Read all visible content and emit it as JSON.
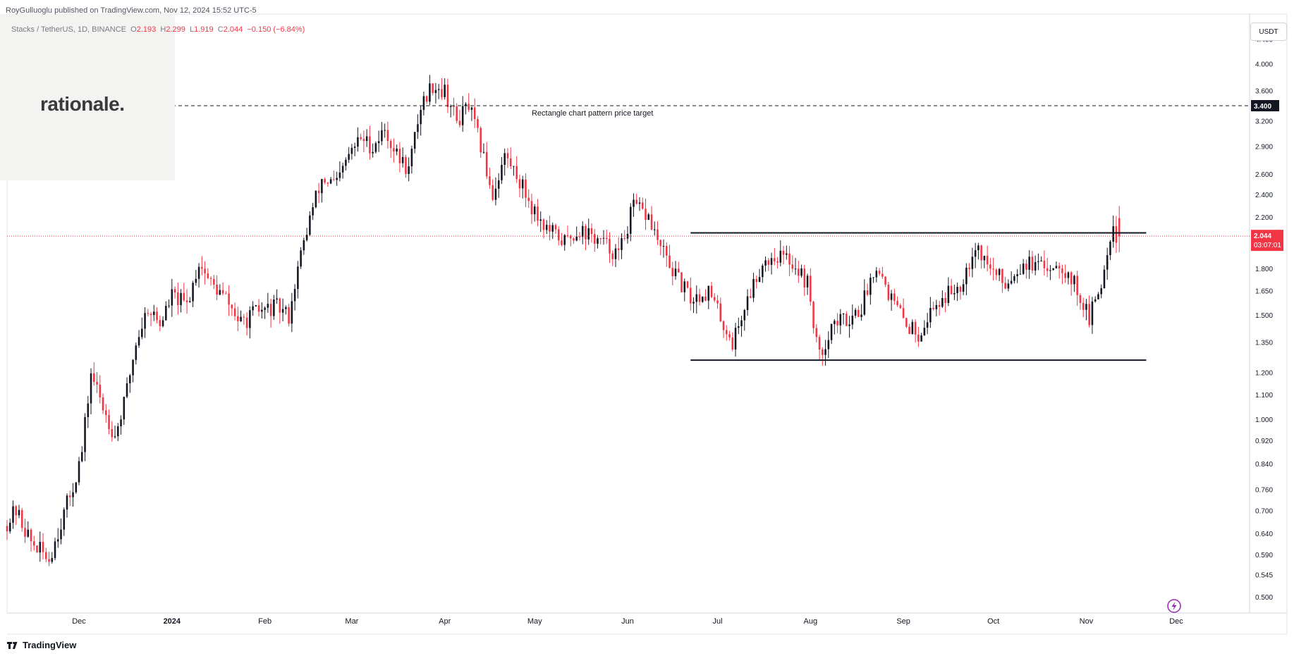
{
  "header": {
    "publisher_line": "RoyGulluoglu published on TradingView.com, Nov 12, 2024 15:52 UTC-5"
  },
  "legend": {
    "symbol": "Stacks / TetherUS, 1D, BINANCE",
    "open_label": "O",
    "open": "2.193",
    "high_label": "H",
    "high": "2.299",
    "low_label": "L",
    "low": "1.919",
    "close_label": "C",
    "close": "2.044",
    "change": "−0.150 (−6.84%)"
  },
  "watermark": {
    "text": "rationale."
  },
  "price_scale": {
    "currency_button": "USDT",
    "current_price_tag": "2.044",
    "countdown_tag": "03:07:01",
    "target_tag": "3.400"
  },
  "footer": {
    "brand": "TradingView"
  },
  "colors": {
    "up": "#131722",
    "down": "#f23645",
    "price_line": "#f23645",
    "annotation": "#131722"
  },
  "icons": {
    "footer_logo": "tradingview-logo-icon",
    "flash": "lightning-icon"
  },
  "chart_data": {
    "type": "candlestick",
    "title": "Stacks / TetherUS, 1D, BINANCE",
    "y_scale": "log",
    "ylim": [
      0.47,
      4.6
    ],
    "y_ticks": [
      "4.400",
      "4.000",
      "3.600",
      "3.200",
      "2.900",
      "2.600",
      "2.400",
      "2.200",
      "2.044",
      "1.800",
      "1.650",
      "1.500",
      "1.350",
      "1.200",
      "1.100",
      "1.000",
      "0.920",
      "0.840",
      "0.760",
      "0.700",
      "0.640",
      "0.590",
      "0.545",
      "0.500"
    ],
    "x_range": [
      "2023-11-07",
      "2024-12-25"
    ],
    "x_ticks": [
      {
        "label": "Dec",
        "date": "2023-12-01"
      },
      {
        "label": "2024",
        "date": "2024-01-01"
      },
      {
        "label": "Feb",
        "date": "2024-02-01"
      },
      {
        "label": "Mar",
        "date": "2024-03-01"
      },
      {
        "label": "Apr",
        "date": "2024-04-01"
      },
      {
        "label": "May",
        "date": "2024-05-01"
      },
      {
        "label": "Jun",
        "date": "2024-06-01"
      },
      {
        "label": "Jul",
        "date": "2024-07-01"
      },
      {
        "label": "Aug",
        "date": "2024-08-01"
      },
      {
        "label": "Sep",
        "date": "2024-09-01"
      },
      {
        "label": "Oct",
        "date": "2024-10-01"
      },
      {
        "label": "Nov",
        "date": "2024-11-01"
      },
      {
        "label": "Dec",
        "date": "2024-12-01"
      }
    ],
    "price_path": [
      [
        "2023-11-07",
        0.66
      ],
      [
        "2023-11-11",
        0.7
      ],
      [
        "2023-11-16",
        0.62
      ],
      [
        "2023-11-22",
        0.58
      ],
      [
        "2023-11-26",
        0.67
      ],
      [
        "2023-11-30",
        0.77
      ],
      [
        "2023-12-03",
        0.88
      ],
      [
        "2023-12-06",
        1.2
      ],
      [
        "2023-12-10",
        1.05
      ],
      [
        "2023-12-14",
        0.94
      ],
      [
        "2023-12-17",
        1.06
      ],
      [
        "2023-12-21",
        1.35
      ],
      [
        "2023-12-25",
        1.55
      ],
      [
        "2023-12-29",
        1.45
      ],
      [
        "2024-01-02",
        1.62
      ],
      [
        "2024-01-07",
        1.56
      ],
      [
        "2024-01-11",
        1.85
      ],
      [
        "2024-01-15",
        1.7
      ],
      [
        "2024-01-20",
        1.6
      ],
      [
        "2024-01-25",
        1.45
      ],
      [
        "2024-01-30",
        1.52
      ],
      [
        "2024-02-06",
        1.55
      ],
      [
        "2024-02-10",
        1.5
      ],
      [
        "2024-02-13",
        1.8
      ],
      [
        "2024-02-17",
        2.2
      ],
      [
        "2024-02-21",
        2.55
      ],
      [
        "2024-02-26",
        2.5
      ],
      [
        "2024-03-01",
        2.8
      ],
      [
        "2024-03-05",
        3.0
      ],
      [
        "2024-03-09",
        2.9
      ],
      [
        "2024-03-13",
        3.1
      ],
      [
        "2024-03-17",
        2.8
      ],
      [
        "2024-03-21",
        2.65
      ],
      [
        "2024-03-25",
        3.4
      ],
      [
        "2024-03-29",
        3.7
      ],
      [
        "2024-04-02",
        3.6
      ],
      [
        "2024-04-06",
        3.2
      ],
      [
        "2024-04-10",
        3.4
      ],
      [
        "2024-04-14",
        2.9
      ],
      [
        "2024-04-18",
        2.4
      ],
      [
        "2024-04-22",
        2.8
      ],
      [
        "2024-04-26",
        2.6
      ],
      [
        "2024-05-01",
        2.3
      ],
      [
        "2024-05-06",
        2.1
      ],
      [
        "2024-05-12",
        2.0
      ],
      [
        "2024-05-17",
        2.1
      ],
      [
        "2024-05-24",
        2.0
      ],
      [
        "2024-05-30",
        1.9
      ],
      [
        "2024-06-04",
        2.3
      ],
      [
        "2024-06-09",
        2.2
      ],
      [
        "2024-06-13",
        1.95
      ],
      [
        "2024-06-18",
        1.75
      ],
      [
        "2024-06-23",
        1.6
      ],
      [
        "2024-06-29",
        1.65
      ],
      [
        "2024-07-04",
        1.45
      ],
      [
        "2024-07-07",
        1.35
      ],
      [
        "2024-07-12",
        1.6
      ],
      [
        "2024-07-17",
        1.85
      ],
      [
        "2024-07-22",
        1.9
      ],
      [
        "2024-07-27",
        1.85
      ],
      [
        "2024-08-01",
        1.7
      ],
      [
        "2024-08-05",
        1.27
      ],
      [
        "2024-08-09",
        1.45
      ],
      [
        "2024-08-14",
        1.48
      ],
      [
        "2024-08-19",
        1.55
      ],
      [
        "2024-08-24",
        1.85
      ],
      [
        "2024-08-29",
        1.6
      ],
      [
        "2024-09-03",
        1.45
      ],
      [
        "2024-09-07",
        1.4
      ],
      [
        "2024-09-12",
        1.55
      ],
      [
        "2024-09-16",
        1.62
      ],
      [
        "2024-09-21",
        1.7
      ],
      [
        "2024-09-26",
        1.98
      ],
      [
        "2024-10-01",
        1.8
      ],
      [
        "2024-10-06",
        1.7
      ],
      [
        "2024-10-12",
        1.85
      ],
      [
        "2024-10-18",
        1.8
      ],
      [
        "2024-10-24",
        1.85
      ],
      [
        "2024-10-29",
        1.7
      ],
      [
        "2024-11-03",
        1.48
      ],
      [
        "2024-11-07",
        1.7
      ],
      [
        "2024-11-11",
        2.19
      ],
      [
        "2024-11-12",
        2.044
      ]
    ],
    "last_candle": {
      "date": "2024-11-12",
      "open": 2.193,
      "high": 2.299,
      "low": 1.919,
      "close": 2.044
    },
    "annotations": [
      {
        "type": "hline",
        "dashed": true,
        "value": 3.4,
        "label": "Rectangle chart pattern price target"
      },
      {
        "type": "hline",
        "dashed": false,
        "value": 2.07,
        "from": "2024-06-22",
        "to": "2024-11-21"
      },
      {
        "type": "hline",
        "dashed": false,
        "value": 1.26,
        "from": "2024-06-22",
        "to": "2024-11-21"
      },
      {
        "type": "hline",
        "dashed": "dotted",
        "value": 2.044,
        "color": "#f23645"
      }
    ]
  }
}
